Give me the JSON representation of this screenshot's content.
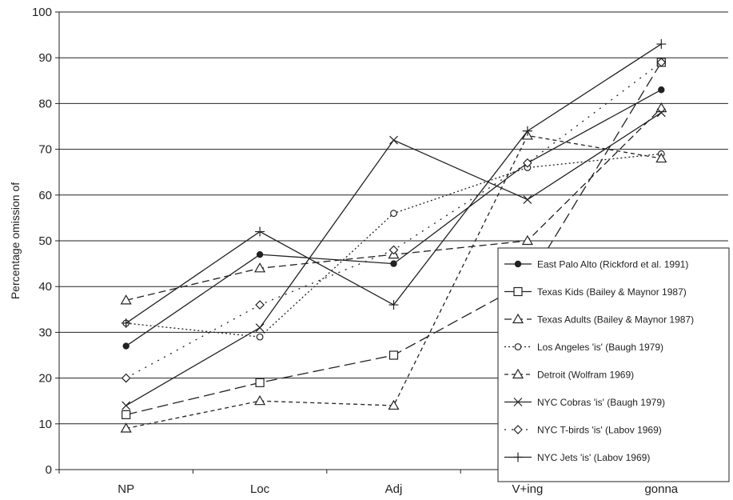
{
  "chart_data": {
    "type": "line",
    "title": "",
    "xlabel": "",
    "ylabel": "Percentage omission of",
    "categories": [
      "NP",
      "Loc",
      "Adj",
      "V+ing",
      "gonna"
    ],
    "ylim": [
      0,
      100
    ],
    "yticks": [
      0,
      10,
      20,
      30,
      40,
      50,
      60,
      70,
      80,
      90,
      100
    ],
    "grid": true,
    "legend_position": "right",
    "series": [
      {
        "name": "East Palo Alto (Rickford et al. 1991)",
        "values": [
          27,
          47,
          45,
          67,
          83
        ],
        "marker": "filled-circle",
        "dash": "solid"
      },
      {
        "name": "Texas Kids (Bailey & Maynor 1987)",
        "values": [
          12,
          19,
          25,
          41,
          89
        ],
        "marker": "square",
        "dash": "long-dash"
      },
      {
        "name": "Texas Adults (Bailey & Maynor 1987)",
        "values": [
          37,
          44,
          47,
          50,
          79
        ],
        "marker": "triangle",
        "dash": "dash"
      },
      {
        "name": "Los Angeles 'is' (Baugh 1979)",
        "values": [
          32,
          29,
          56,
          66,
          69
        ],
        "marker": "circle",
        "dash": "dot"
      },
      {
        "name": "Detroit (Wolfram 1969)",
        "values": [
          9,
          15,
          14,
          73,
          68
        ],
        "marker": "triangle",
        "dash": "short-dash"
      },
      {
        "name": "NYC Cobras 'is' (Baugh 1979)",
        "values": [
          14,
          31,
          72,
          59,
          78
        ],
        "marker": "x",
        "dash": "solid"
      },
      {
        "name": "NYC T-birds 'is' (Labov 1969)",
        "values": [
          20,
          36,
          48,
          67,
          89
        ],
        "marker": "diamond",
        "dash": "dot-spaced"
      },
      {
        "name": "NYC Jets 'is' (Labov 1969)",
        "values": [
          32,
          52,
          36,
          74,
          93
        ],
        "marker": "plus",
        "dash": "solid"
      }
    ]
  }
}
